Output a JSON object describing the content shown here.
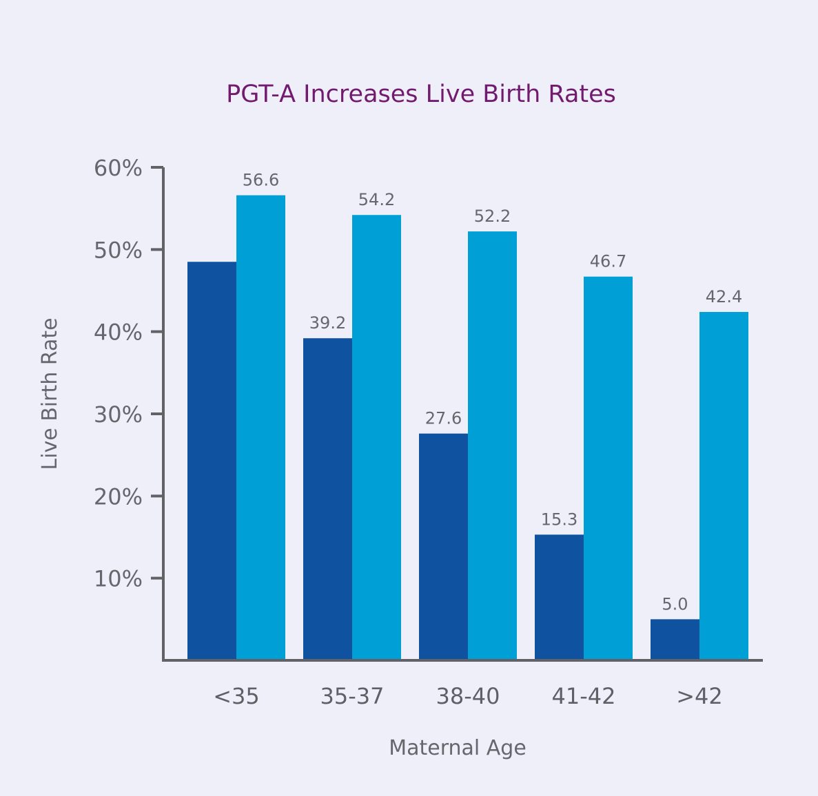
{
  "chart_data": {
    "type": "bar",
    "title": "PGT-A Increases Live Birth Rates",
    "xlabel": "Maternal Age",
    "ylabel": "Live Birth Rate",
    "categories": [
      "<35",
      "35-37",
      "38-40",
      "41-42",
      ">42"
    ],
    "series": [
      {
        "values": [
          48.5,
          39.2,
          27.6,
          15.3,
          5.0
        ],
        "data_labels": [
          "",
          "39.2",
          "27.6",
          "15.3",
          "5.0"
        ],
        "color": "#0f529f"
      },
      {
        "values": [
          56.6,
          54.2,
          52.2,
          46.7,
          42.4
        ],
        "data_labels": [
          "56.6",
          "54.2",
          "52.2",
          "46.7",
          "42.4"
        ],
        "color": "#00a0d7"
      }
    ],
    "yticks": [
      "10%",
      "20%",
      "30%",
      "40%",
      "50%",
      "60%"
    ],
    "ylim": [
      0,
      60
    ],
    "grid": false,
    "legend": "none",
    "colors": {
      "title": "#721a6f",
      "axis": "#616166",
      "background": "#efeff9"
    }
  }
}
